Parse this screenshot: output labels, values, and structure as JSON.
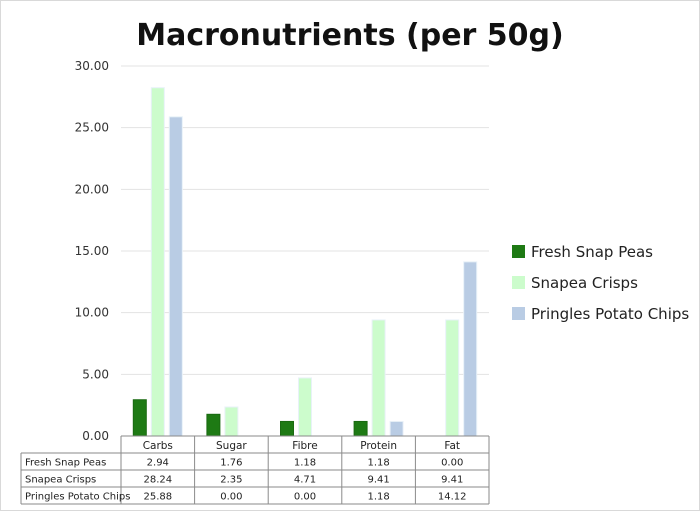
{
  "chart_data": {
    "type": "bar",
    "title": "Macronutrients (per 50g)",
    "xlabel": "",
    "ylabel": "",
    "ylim": [
      0,
      30
    ],
    "yticks": [
      "0.00",
      "5.00",
      "10.00",
      "15.00",
      "20.00",
      "25.00",
      "30.00"
    ],
    "grid": true,
    "legend_position": "right",
    "categories": [
      "Carbs",
      "Sugar",
      "Fibre",
      "Protein",
      "Fat"
    ],
    "series": [
      {
        "name": "Fresh Snap Peas",
        "color": "#1e7a14",
        "values": [
          2.94,
          1.76,
          1.18,
          1.18,
          0.0
        ],
        "labels": [
          "2.94",
          "1.76",
          "1.18",
          "1.18",
          "0.00"
        ]
      },
      {
        "name": "Snapea Crisps",
        "color": "#ccfccc",
        "values": [
          28.24,
          2.35,
          4.71,
          9.41,
          9.41
        ],
        "labels": [
          "28.24",
          "2.35",
          "4.71",
          "9.41",
          "9.41"
        ]
      },
      {
        "name": "Pringles Potato Chips",
        "color": "#b9cce4",
        "values": [
          25.88,
          0.0,
          0.0,
          1.18,
          14.12
        ],
        "labels": [
          "25.88",
          "0.00",
          "0.00",
          "1.18",
          "14.12"
        ]
      }
    ]
  }
}
